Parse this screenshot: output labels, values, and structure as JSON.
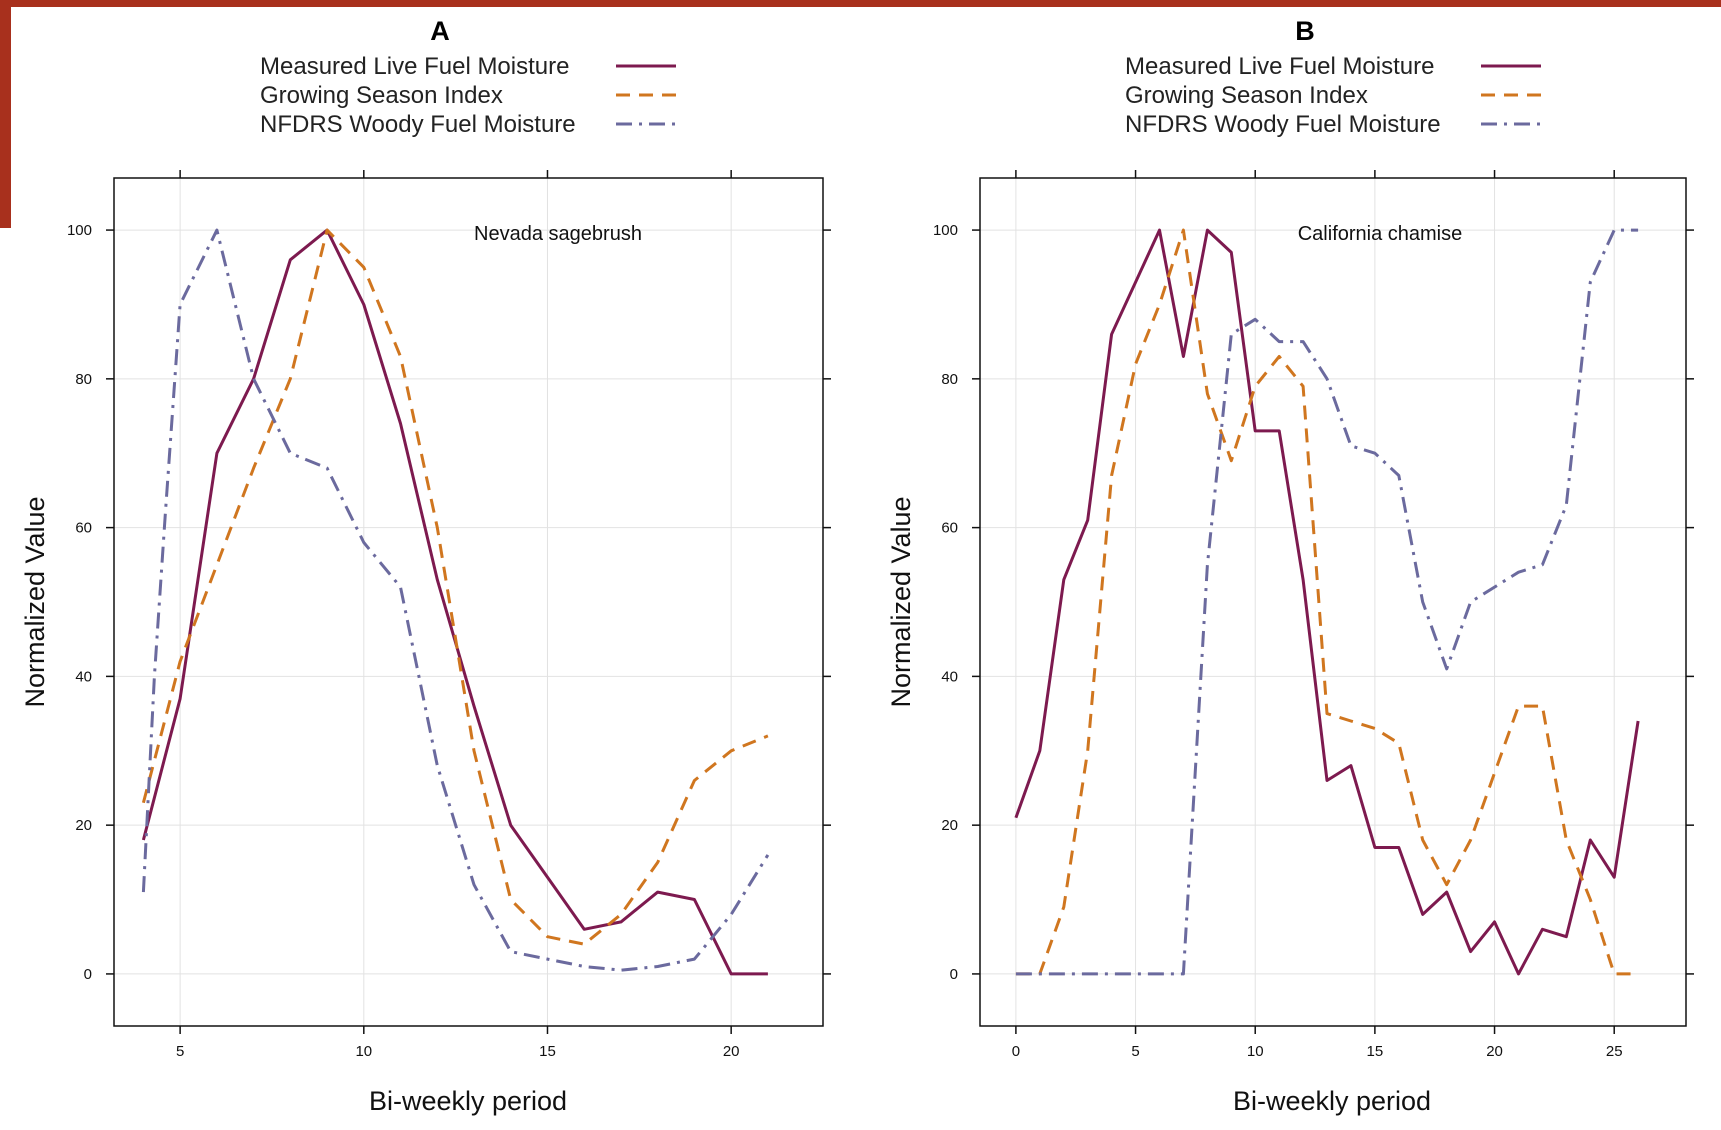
{
  "colors": {
    "frame": "#a8301d",
    "measured": "#7d1a4f",
    "gsi": "#d0761f",
    "nfdrs": "#6b6a9e",
    "grid": "#e2e2e2"
  },
  "chart_data": [
    {
      "type": "line",
      "title": "A",
      "annotation": "Nevada sagebrush",
      "xlabel": "Bi-weekly period",
      "ylabel": "Normalized Value",
      "xlim": [
        3.2,
        22.5
      ],
      "ylim": [
        -7,
        107
      ],
      "xticks": [
        5,
        10,
        15,
        20
      ],
      "yticks": [
        0,
        20,
        40,
        60,
        80,
        100
      ],
      "grid": true,
      "legend_position": "top",
      "series": [
        {
          "name": "Measured Live Fuel Moisture",
          "style": "solid",
          "color": "#7d1a4f",
          "x": [
            4,
            5,
            6,
            7,
            8,
            9,
            10,
            11,
            12,
            13,
            14,
            15,
            16,
            17,
            18,
            19,
            20,
            21
          ],
          "y": [
            18,
            37,
            70,
            80,
            96,
            100,
            90,
            74,
            53,
            36,
            20,
            13,
            6,
            7,
            11,
            10,
            0,
            0
          ]
        },
        {
          "name": "Growing Season Index",
          "style": "dashed",
          "color": "#d0761f",
          "x": [
            4,
            5,
            6,
            7,
            8,
            9,
            10,
            11,
            12,
            13,
            14,
            15,
            16,
            17,
            18,
            19,
            20,
            21
          ],
          "y": [
            23,
            42,
            55,
            68,
            80,
            100,
            95,
            83,
            60,
            30,
            10,
            5,
            4,
            8,
            15,
            26,
            30,
            32
          ]
        },
        {
          "name": "NFDRS Woody Fuel Moisture",
          "style": "dashdot",
          "color": "#6b6a9e",
          "x": [
            4,
            4.3,
            4.6,
            5,
            6,
            7,
            8,
            9,
            10,
            11,
            12,
            13,
            14,
            15,
            16,
            17,
            18,
            19,
            20,
            21
          ],
          "y": [
            11,
            40,
            62,
            90,
            100,
            80,
            70,
            68,
            58,
            52,
            28,
            12,
            3,
            2,
            1,
            0.5,
            1,
            2,
            8,
            16
          ]
        }
      ]
    },
    {
      "type": "line",
      "title": "B",
      "annotation": "California chamise",
      "xlabel": "Bi-weekly period",
      "ylabel": "Normalized Value",
      "xlim": [
        -1.5,
        28
      ],
      "ylim": [
        -7,
        107
      ],
      "xticks": [
        0,
        5,
        10,
        15,
        20,
        25
      ],
      "yticks": [
        0,
        20,
        40,
        60,
        80,
        100
      ],
      "grid": true,
      "legend_position": "top",
      "series": [
        {
          "name": "Measured Live Fuel Moisture",
          "style": "solid",
          "color": "#7d1a4f",
          "x": [
            0,
            1,
            2,
            3,
            4,
            5,
            6,
            7,
            8,
            9,
            10,
            11,
            12,
            13,
            14,
            15,
            16,
            17,
            18,
            19,
            20,
            21,
            22,
            23,
            24,
            25,
            26
          ],
          "y": [
            21,
            30,
            53,
            61,
            86,
            93,
            100,
            83,
            100,
            97,
            73,
            73,
            53,
            26,
            28,
            17,
            17,
            8,
            11,
            3,
            7,
            0,
            6,
            5,
            18,
            13,
            34
          ]
        },
        {
          "name": "Growing Season Index",
          "style": "dashed",
          "color": "#d0761f",
          "x": [
            0,
            1,
            2,
            3,
            4,
            5,
            6,
            7,
            8,
            9,
            10,
            11,
            12,
            13,
            14,
            15,
            16,
            17,
            18,
            19,
            20,
            21,
            22,
            23,
            24,
            25,
            26
          ],
          "y": [
            0,
            0,
            9,
            30,
            67,
            82,
            90,
            100,
            78,
            69,
            79,
            83,
            79,
            35,
            34,
            33,
            31,
            18,
            12,
            18,
            27,
            36,
            36,
            18,
            10,
            0,
            0
          ]
        },
        {
          "name": "NFDRS Woody Fuel Moisture",
          "style": "dashdot",
          "color": "#6b6a9e",
          "x": [
            0,
            1,
            2,
            3,
            4,
            5,
            6,
            7,
            8,
            9,
            10,
            11,
            12,
            13,
            14,
            15,
            16,
            17,
            18,
            19,
            20,
            21,
            22,
            23,
            24,
            25,
            26
          ],
          "y": [
            0,
            0,
            0,
            0,
            0,
            0,
            0,
            0,
            55,
            86,
            88,
            85,
            85,
            80,
            71,
            70,
            67,
            50,
            41,
            50,
            52,
            54,
            55,
            63,
            93,
            100,
            100
          ]
        }
      ]
    }
  ]
}
